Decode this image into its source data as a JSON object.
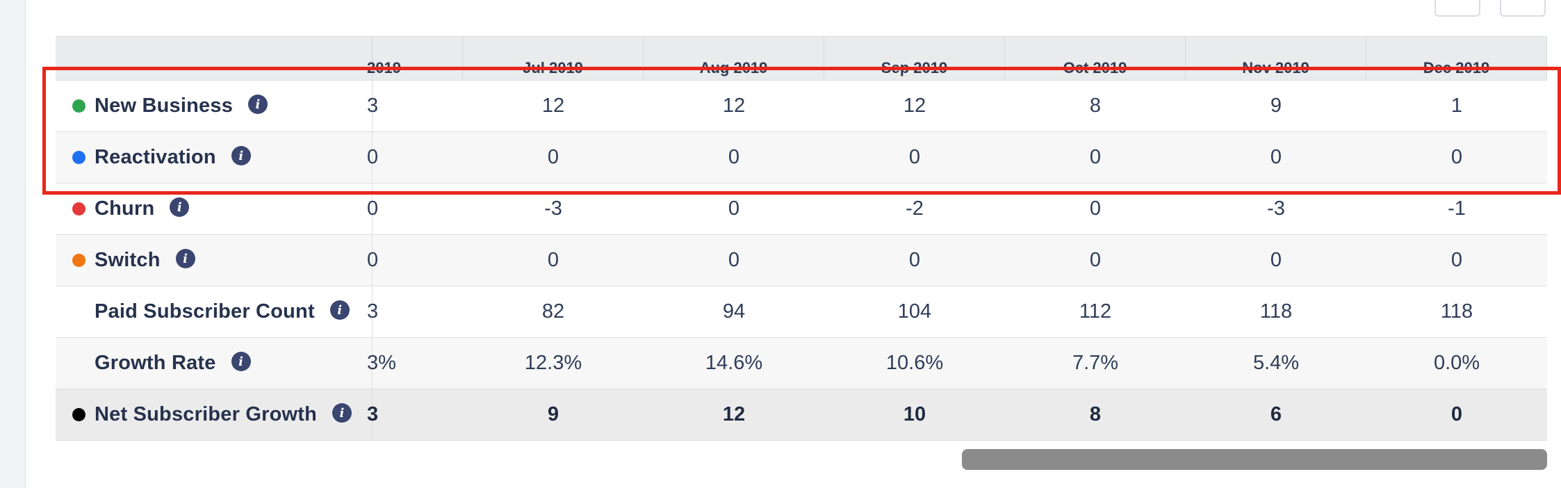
{
  "table": {
    "columns": [
      "2019",
      "Jul 2019",
      "Aug 2019",
      "Sep 2019",
      "Oct 2019",
      "Nov 2019",
      "Dec 2019"
    ],
    "rows": [
      {
        "label": "New Business",
        "dot": "#2ea44f",
        "partial": "3",
        "values": [
          "12",
          "12",
          "12",
          "8",
          "9",
          "1"
        ]
      },
      {
        "label": "Reactivation",
        "dot": "#1f6ff2",
        "partial": "0",
        "values": [
          "0",
          "0",
          "0",
          "0",
          "0",
          "0"
        ]
      },
      {
        "label": "Churn",
        "dot": "#e5393a",
        "partial": "0",
        "values": [
          "-3",
          "0",
          "-2",
          "0",
          "-3",
          "-1"
        ]
      },
      {
        "label": "Switch",
        "dot": "#f07613",
        "partial": "0",
        "values": [
          "0",
          "0",
          "0",
          "0",
          "0",
          "0"
        ]
      },
      {
        "label": "Paid Subscriber Count",
        "dot": "",
        "partial": "3",
        "values": [
          "82",
          "94",
          "104",
          "112",
          "118",
          "118"
        ]
      },
      {
        "label": "Growth Rate",
        "dot": "",
        "partial": "3%",
        "values": [
          "12.3%",
          "14.6%",
          "10.6%",
          "7.7%",
          "5.4%",
          "0.0%"
        ]
      },
      {
        "label": "Net Subscriber Growth",
        "dot": "#000000",
        "partial": "3",
        "values": [
          "9",
          "12",
          "10",
          "8",
          "6",
          "0"
        ]
      }
    ]
  },
  "info_icon_glyph": "i",
  "highlight_color": "#e8261b"
}
